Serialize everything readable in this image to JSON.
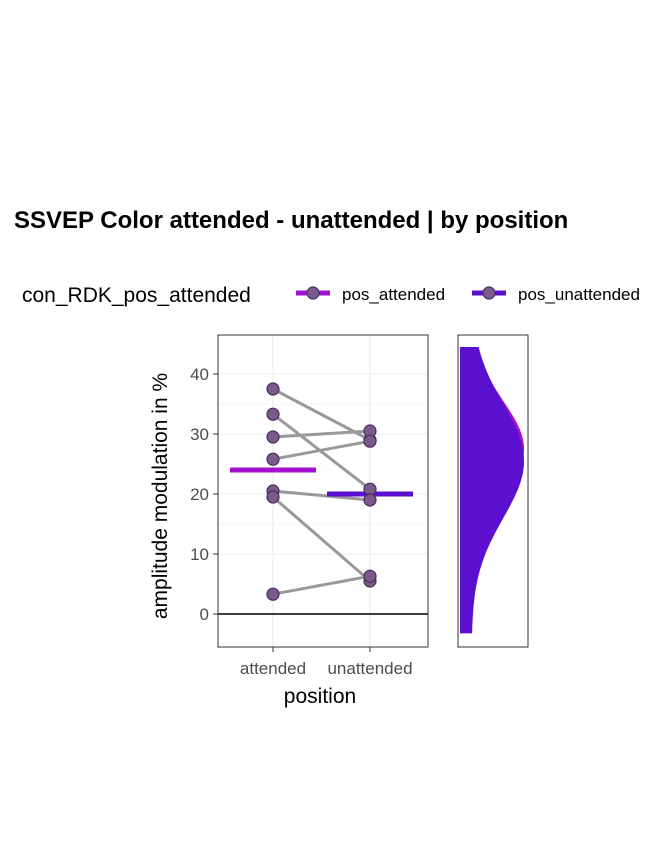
{
  "chart_data": {
    "type": "scatter",
    "title": "SSVEP Color attended - unattended | by position",
    "xlabel": "position",
    "ylabel": "amplitude modulation in %",
    "categories": [
      "attended",
      "unattended"
    ],
    "yticks": [
      0,
      10,
      20,
      30,
      40
    ],
    "ylim": [
      -5.5,
      46.5
    ],
    "grid": true,
    "zero_line": 0,
    "legend": {
      "title": "con_RDK_pos_attended",
      "placement": "top",
      "entries": [
        {
          "label": "pos_attended",
          "color": "#a50fcf"
        },
        {
          "label": "pos_unattended",
          "color": "#5b0fcf"
        }
      ]
    },
    "subjects": [
      {
        "attended": 37.5,
        "unattended": 29.0
      },
      {
        "attended": 33.3,
        "unattended": 20.8
      },
      {
        "attended": 29.5,
        "unattended": 30.5
      },
      {
        "attended": 25.8,
        "unattended": 28.8
      },
      {
        "attended": 20.5,
        "unattended": 19.0
      },
      {
        "attended": 19.5,
        "unattended": 5.5
      },
      {
        "attended": 3.3,
        "unattended": 6.3
      }
    ],
    "means": [
      {
        "category": "attended",
        "value": 24.0,
        "color": "#a50fcf"
      },
      {
        "category": "unattended",
        "value": 20.0,
        "color": "#5b0fcf"
      }
    ],
    "density": {
      "range": [
        -3.2,
        44.5
      ],
      "series": [
        {
          "name": "pos_attended",
          "color": "#a50fcf",
          "peak": 27.5,
          "sd": 8.0
        },
        {
          "name": "pos_unattended",
          "color": "#5b0fcf",
          "peak": 25.5,
          "sd": 9.5
        }
      ]
    },
    "colors": {
      "point_fill": "#7a5a8c",
      "point_stroke": "#4a2d5c",
      "line": "#999999",
      "grid": "#ebebeb"
    }
  }
}
